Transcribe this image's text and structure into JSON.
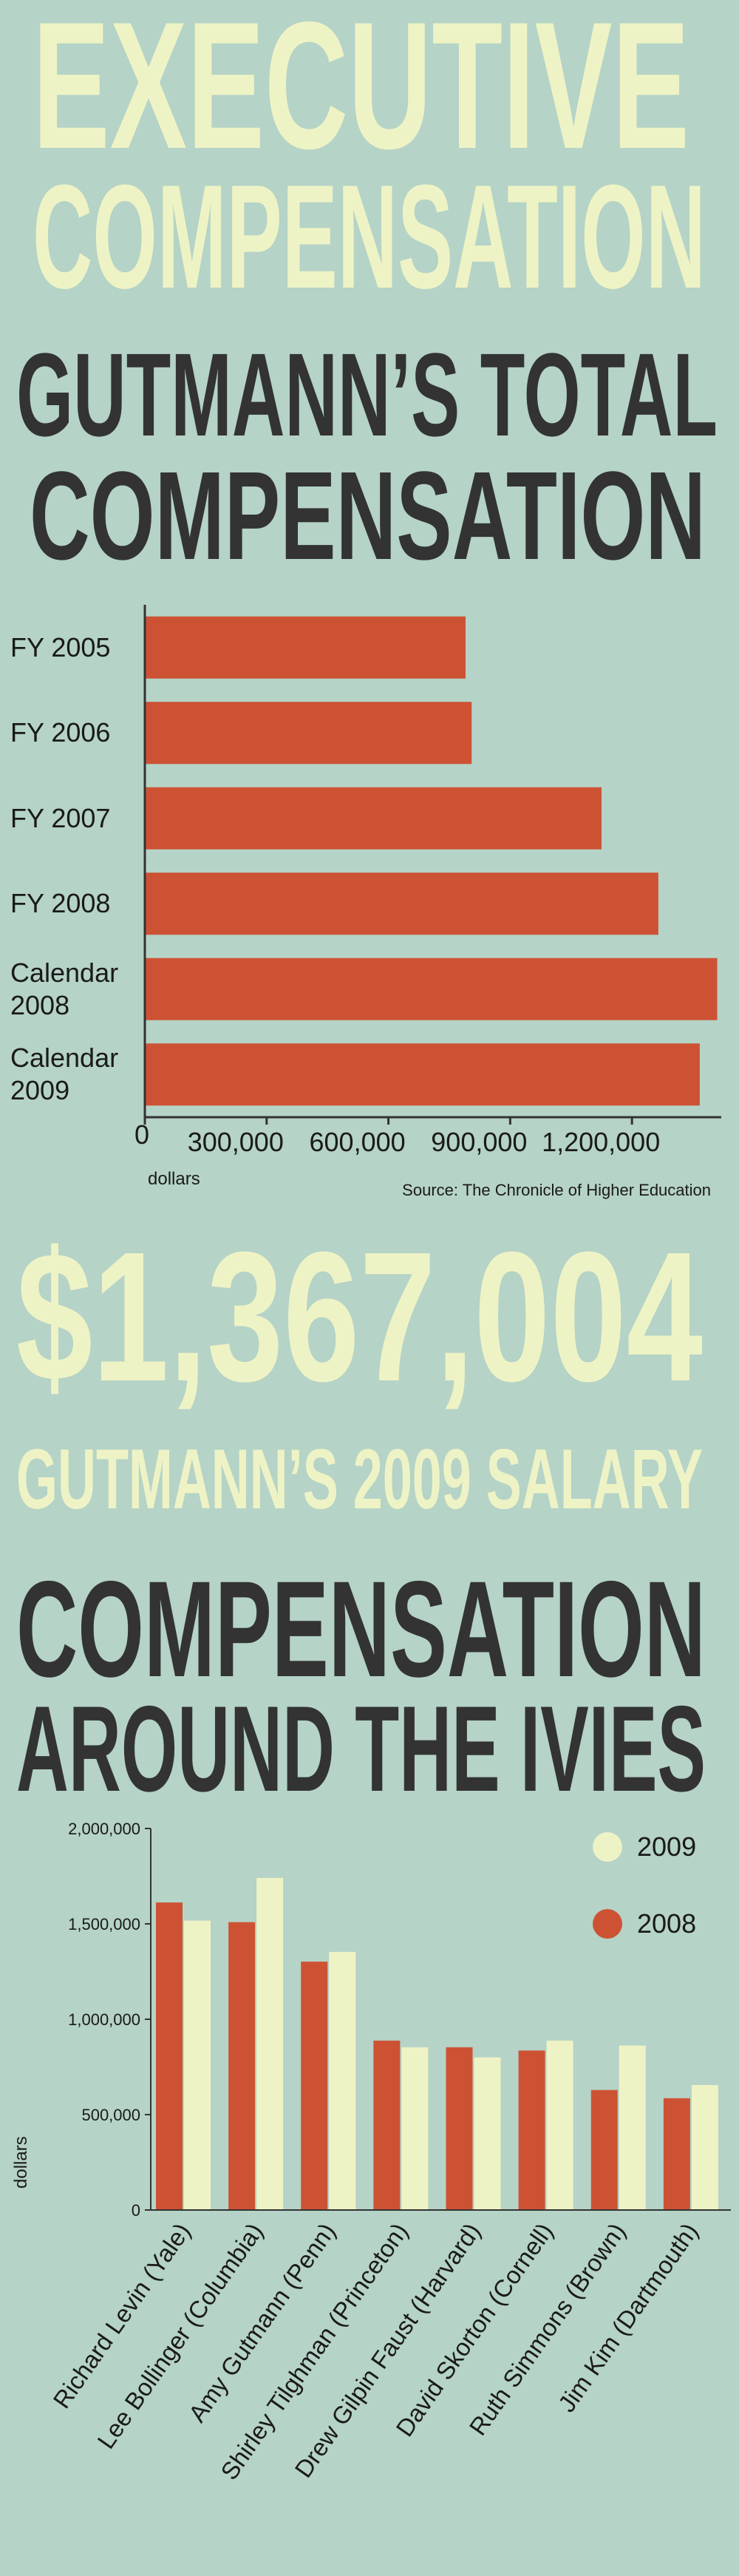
{
  "header": {
    "title": [
      "EXECUTIVE",
      "COMPENSATION"
    ]
  },
  "callout": {
    "amount": "$1,367,004",
    "caption": "GUTMANN’S 2009 SALARY"
  },
  "chart_data": [
    {
      "type": "barh",
      "title": [
        "GUTMANN’S TOTAL",
        "COMPENSATION"
      ],
      "categories": [
        "FY 2005",
        "FY 2006",
        "FY 2007",
        "FY 2008",
        "Calendar 2008",
        "Calendar 2009"
      ],
      "values": [
        790000,
        805000,
        1125000,
        1265000,
        1410000,
        1367000
      ],
      "color": "#cd5234",
      "xlim": [
        0,
        1420000
      ],
      "xticks": [
        0,
        {
          "value": 300000,
          "label": "300,000"
        },
        {
          "value": 600000,
          "label": "600,000"
        },
        {
          "value": 900000,
          "label": "900,000"
        },
        {
          "value": 1200000,
          "label": "1,200,000"
        }
      ],
      "x_label": "dollars",
      "source": "Source: The Chronicle of Higher Education"
    },
    {
      "type": "bar",
      "title": [
        "COMPENSATION",
        "AROUND THE IVIES"
      ],
      "categories": [
        "Richard Levin (Yale)",
        "Lee Bollinger (Columbia)",
        "Amy Gutmann (Penn)",
        "Shirley Tilghman (Princeton)",
        "Drew Gilpin Faust (Harvard)",
        "David Skorton (Cornell)",
        "Ruth Simmons (Brown)",
        "Jim Kim (Dartmouth)"
      ],
      "series": [
        {
          "name": "2009",
          "color": "#eef3c6",
          "values": [
            1517000,
            1741000,
            1353000,
            853000,
            800000,
            888000,
            862000,
            655000
          ]
        },
        {
          "name": "2008",
          "color": "#cd5234",
          "values": [
            1612000,
            1509000,
            1302000,
            888000,
            853000,
            836000,
            629000,
            586000
          ]
        }
      ],
      "ylim": [
        0,
        2000000
      ],
      "yticks": [
        0,
        {
          "value": 500000,
          "label": "500,000"
        },
        {
          "value": 1000000,
          "label": "1,000,000"
        },
        {
          "value": 1500000,
          "label": "1,500,000"
        },
        {
          "value": 2000000,
          "label": "2,000,000"
        }
      ],
      "y_label": "dollars",
      "legend": "upper right"
    }
  ]
}
